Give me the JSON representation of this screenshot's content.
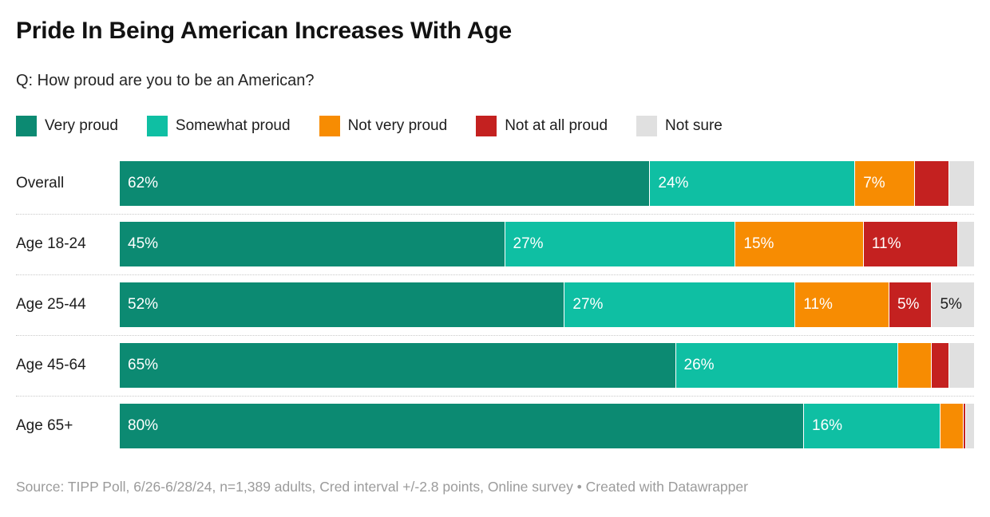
{
  "title": "Pride In Being American Increases With Age",
  "subtitle": "Q: How proud are you to be an American?",
  "footer": {
    "source": "Source: TIPP Poll, 6/26-6/28/24, n=1,389 adults, Cred interval +/-2.8 points, Online survey • Created with Datawrapper"
  },
  "palette": {
    "very_proud": "#0c8a72",
    "somewhat_proud": "#0fbfa3",
    "not_very_proud": "#f78c02",
    "not_at_all_proud": "#c42120",
    "not_sure": "#e0e0e0",
    "label_on_color": "#ffffff",
    "label_on_gray": "#1d1d1d",
    "divider": "#c9c9c9",
    "source_text": "#9b9b9b"
  },
  "legend": [
    {
      "key": "very-proud",
      "label": "Very proud",
      "color": "#0c8a72"
    },
    {
      "key": "somewhat-proud",
      "label": "Somewhat proud",
      "color": "#0fbfa3"
    },
    {
      "key": "not-very-proud",
      "label": "Not very proud",
      "color": "#f78c02"
    },
    {
      "key": "not-at-all-proud",
      "label": "Not at all proud",
      "color": "#c42120"
    },
    {
      "key": "not-sure",
      "label": "Not sure",
      "color": "#e0e0e0"
    }
  ],
  "chart_data": {
    "type": "bar",
    "stacked": true,
    "orientation": "horizontal",
    "value_unit": "%",
    "xlim": [
      0,
      100
    ],
    "grid": false,
    "categories": [
      "Overall",
      "Age 18-24",
      "Age 25-44",
      "Age 45-64",
      "Age 65+"
    ],
    "series": [
      {
        "name": "Very proud",
        "key": "very-proud",
        "color": "#0c8a72",
        "text_color": "#ffffff",
        "values": [
          62,
          45,
          52,
          65,
          80
        ],
        "labels": [
          "62%",
          "45%",
          "52%",
          "65%",
          "80%"
        ]
      },
      {
        "name": "Somewhat proud",
        "key": "somewhat-proud",
        "color": "#0fbfa3",
        "text_color": "#ffffff",
        "values": [
          24,
          27,
          27,
          26,
          16
        ],
        "labels": [
          "24%",
          "27%",
          "27%",
          "26%",
          "16%"
        ]
      },
      {
        "name": "Not very proud",
        "key": "not-very-proud",
        "color": "#f78c02",
        "text_color": "#ffffff",
        "values": [
          7,
          15,
          11,
          4,
          2.7
        ],
        "labels": [
          "7%",
          "15%",
          "11%",
          "",
          ""
        ]
      },
      {
        "name": "Not at all proud",
        "key": "not-at-all-proud",
        "color": "#c42120",
        "text_color": "#ffffff",
        "values": [
          4,
          11,
          5,
          2,
          0.3
        ],
        "labels": [
          "",
          "11%",
          "5%",
          "",
          ""
        ]
      },
      {
        "name": "Not sure",
        "key": "not-sure",
        "color": "#e0e0e0",
        "text_color": "#1d1d1d",
        "values": [
          3,
          2,
          5,
          3,
          1
        ],
        "labels": [
          "",
          "",
          "5%",
          "",
          ""
        ]
      }
    ]
  }
}
